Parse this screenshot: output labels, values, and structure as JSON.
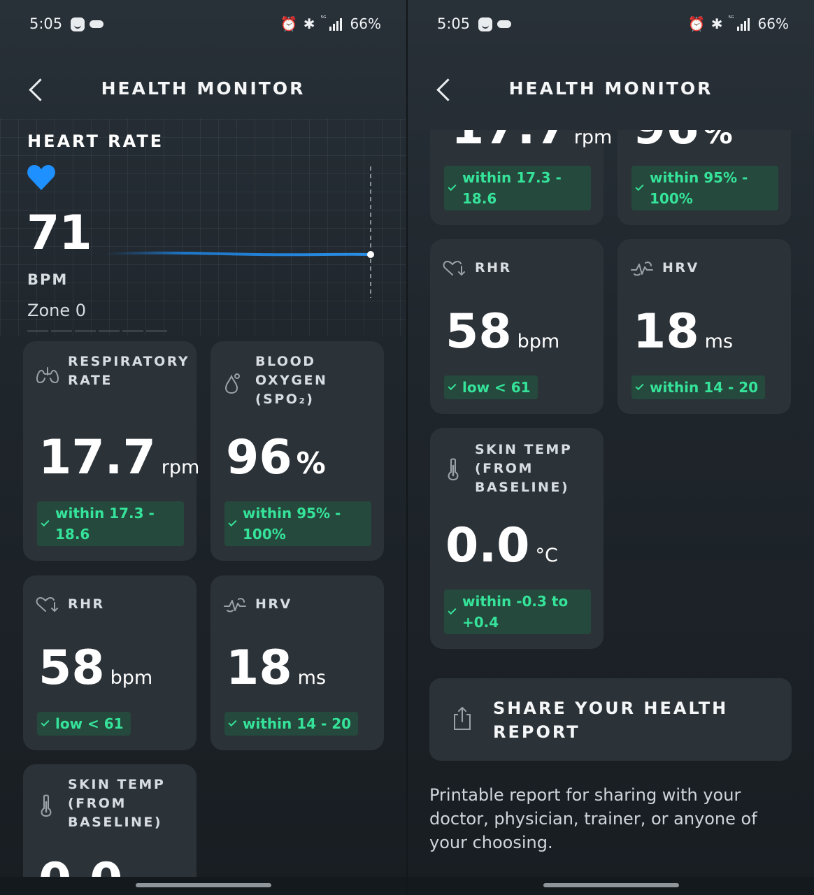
{
  "status": {
    "time": "5:05",
    "battery": "66%",
    "network": "5G"
  },
  "header": {
    "title": "HEALTH MONITOR"
  },
  "heart_rate": {
    "label": "HEART RATE",
    "value": "71",
    "unit": "BPM",
    "zone": "Zone 0"
  },
  "metrics": {
    "respiratory": {
      "label_line1": "RESPIRATORY",
      "label_line2": "RATE",
      "value": "17.7",
      "unit": "rpm",
      "badge_line1": "within 17.3 -",
      "badge_line2": "18.6"
    },
    "spo2": {
      "label_line1": "BLOOD",
      "label_line2": "OXYGEN",
      "label_line3": "(SPO₂)",
      "value": "96",
      "unit": "%",
      "badge_line1": "within 95% -",
      "badge_line2": "100%"
    },
    "rhr": {
      "label": "RHR",
      "value": "58",
      "unit": "bpm",
      "badge": "low < 61"
    },
    "hrv": {
      "label": "HRV",
      "value": "18",
      "unit": "ms",
      "badge": "within 14 - 20"
    },
    "skin_temp": {
      "label_line1": "SKIN TEMP",
      "label_line2": "(FROM",
      "label_line3": "BASELINE)",
      "value": "0.0",
      "unit": "°C",
      "badge_line1": "within -0.3 to",
      "badge_line2": "+0.4"
    }
  },
  "share": {
    "label_line1": "SHARE YOUR HEALTH",
    "label_line2": "REPORT",
    "description": "Printable report for sharing with your doctor, physician, trainer, or anyone of your choosing."
  },
  "colors": {
    "accent_green": "#35e39a",
    "badge_bg": "#25493c",
    "heart_blue": "#1e90ff",
    "card_bg": "#2b3238"
  },
  "icons": [
    "alarm-icon",
    "bluetooth-icon",
    "signal-icon",
    "back-chevron-icon",
    "heart-icon",
    "lungs-icon",
    "droplet-icon",
    "heart-down-icon",
    "pulse-icon",
    "thermometer-icon",
    "share-icon"
  ]
}
